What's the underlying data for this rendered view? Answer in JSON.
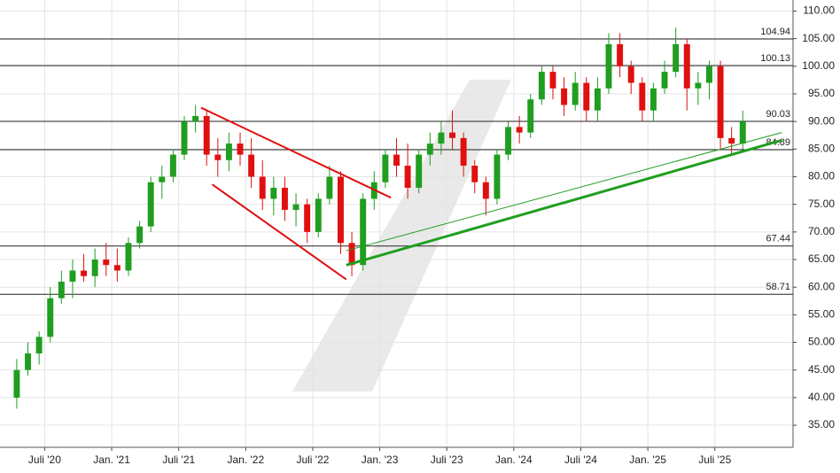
{
  "chart_data": {
    "type": "candlestick",
    "up_color": "#1f9e1f",
    "down_color": "#e01010",
    "grid": true,
    "x": [
      "2020-04",
      "2020-05",
      "2020-06",
      "2020-07",
      "2020-08",
      "2020-09",
      "2020-10",
      "2020-11",
      "2020-12",
      "2021-01",
      "2021-02",
      "2021-03",
      "2021-04",
      "2021-05",
      "2021-06",
      "2021-07",
      "2021-08",
      "2021-09",
      "2021-10",
      "2021-11",
      "2021-12",
      "2022-01",
      "2022-02",
      "2022-03",
      "2022-04",
      "2022-05",
      "2022-06",
      "2022-07",
      "2022-08",
      "2022-09",
      "2022-10",
      "2022-11",
      "2022-12",
      "2023-01",
      "2023-02",
      "2023-03",
      "2023-04",
      "2023-05",
      "2023-06",
      "2023-07",
      "2023-08",
      "2023-09",
      "2023-10",
      "2023-11",
      "2023-12",
      "2024-01",
      "2024-02",
      "2024-03",
      "2024-04",
      "2024-05",
      "2024-06",
      "2024-07",
      "2024-08",
      "2024-09",
      "2024-10",
      "2024-11",
      "2024-12",
      "2025-01",
      "2025-02",
      "2025-03",
      "2025-04",
      "2025-05",
      "2025-06",
      "2025-07",
      "2025-08",
      "2025-09"
    ],
    "open": [
      40,
      45,
      48,
      51,
      58,
      61,
      63,
      62,
      65,
      64,
      63,
      68,
      71,
      79,
      80,
      84,
      90,
      91,
      84,
      83,
      86,
      84,
      80,
      76,
      78,
      74,
      75,
      70,
      76,
      80,
      68,
      64,
      76,
      79,
      84,
      82,
      78,
      84,
      86,
      88,
      87,
      82,
      79,
      76,
      84,
      89,
      88,
      94,
      99,
      96,
      93,
      97,
      92,
      96,
      104,
      100,
      97,
      92,
      96,
      99,
      104,
      96,
      97,
      100,
      87,
      86
    ],
    "high": [
      47,
      50,
      52,
      60,
      63,
      65,
      66,
      67,
      68,
      67,
      69,
      72,
      80,
      82,
      85,
      91,
      93,
      92,
      87,
      88,
      88,
      87,
      83,
      80,
      80,
      77,
      76,
      77,
      82,
      81,
      70,
      77,
      81,
      85,
      87,
      86,
      85,
      88,
      90,
      92,
      88,
      83,
      80,
      85,
      90,
      91,
      95,
      100,
      100,
      98,
      99,
      98,
      98,
      106,
      106,
      101,
      98,
      97,
      101,
      107,
      105,
      99,
      101,
      101,
      89,
      92
    ],
    "low": [
      38,
      44,
      46,
      50,
      57,
      58,
      61,
      60,
      62,
      61,
      62,
      67,
      70,
      76,
      79,
      83,
      88,
      82,
      80,
      81,
      82,
      78,
      74,
      73,
      72,
      71,
      68,
      69,
      75,
      66,
      62,
      63,
      74,
      78,
      80,
      76,
      77,
      82,
      84,
      85,
      80,
      77,
      73,
      75,
      83,
      86,
      87,
      93,
      94,
      91,
      92,
      90,
      90,
      95,
      98,
      95,
      90,
      90,
      95,
      98,
      92,
      93,
      94,
      85,
      84,
      85
    ],
    "close": [
      45,
      48,
      51,
      58,
      61,
      63,
      62,
      65,
      64,
      63,
      68,
      71,
      79,
      80,
      84,
      90,
      91,
      84,
      83,
      86,
      84,
      80,
      76,
      78,
      74,
      75,
      70,
      76,
      80,
      68,
      64,
      76,
      79,
      84,
      82,
      78,
      84,
      86,
      88,
      87,
      82,
      79,
      76,
      84,
      89,
      88,
      94,
      99,
      96,
      93,
      97,
      92,
      96,
      104,
      100,
      97,
      92,
      96,
      99,
      104,
      96,
      97,
      100,
      87,
      86,
      90
    ],
    "xlim": [
      "2020-03",
      "2026-02"
    ],
    "xticks": [
      {
        "value": "2020-07",
        "label": "Juli '20"
      },
      {
        "value": "2021-01",
        "label": "Jan. '21"
      },
      {
        "value": "2021-07",
        "label": "Juli '21"
      },
      {
        "value": "2022-01",
        "label": "Jan. '22"
      },
      {
        "value": "2022-07",
        "label": "Juli '22"
      },
      {
        "value": "2023-01",
        "label": "Jan. '23"
      },
      {
        "value": "2023-07",
        "label": "Juli '23"
      },
      {
        "value": "2024-01",
        "label": "Jan. '24"
      },
      {
        "value": "2024-07",
        "label": "Juli '24"
      },
      {
        "value": "2025-01",
        "label": "Jan. '25"
      },
      {
        "value": "2025-07",
        "label": "Juli '25"
      }
    ],
    "ylim": [
      31,
      112
    ],
    "yticks": [
      {
        "value": 35,
        "label": "35.00"
      },
      {
        "value": 40,
        "label": "40.00"
      },
      {
        "value": 45,
        "label": "45.00"
      },
      {
        "value": 50,
        "label": "50.00"
      },
      {
        "value": 55,
        "label": "55.00"
      },
      {
        "value": 60,
        "label": "60.00"
      },
      {
        "value": 65,
        "label": "65.00"
      },
      {
        "value": 70,
        "label": "70.00"
      },
      {
        "value": 75,
        "label": "75.00"
      },
      {
        "value": 80,
        "label": "80.00"
      },
      {
        "value": 85,
        "label": "85.00"
      },
      {
        "value": 90,
        "label": "90.00"
      },
      {
        "value": 95,
        "label": "95.00"
      },
      {
        "value": 100,
        "label": "100.00"
      },
      {
        "value": 105,
        "label": "105.00"
      },
      {
        "value": 110,
        "label": "110.00"
      }
    ],
    "levels": [
      104.94,
      100.13,
      90.03,
      84.89,
      67.44,
      58.71
    ],
    "trendlines": [
      {
        "color": "#e01010",
        "width": 2,
        "x": [
          "2021-09",
          "2023-02"
        ],
        "y": [
          92.5,
          76.2
        ]
      },
      {
        "color": "#e01010",
        "width": 2,
        "x": [
          "2021-10",
          "2022-10"
        ],
        "y": [
          78.6,
          61.4
        ]
      },
      {
        "color": "#1f9e1f",
        "width": 3,
        "x": [
          "2022-10",
          "2026-01"
        ],
        "y": [
          64,
          86.6
        ]
      },
      {
        "color": "#1f9e1f",
        "width": 1,
        "x": [
          "2022-10",
          "2026-01"
        ],
        "y": [
          66.6,
          88
        ]
      }
    ]
  }
}
